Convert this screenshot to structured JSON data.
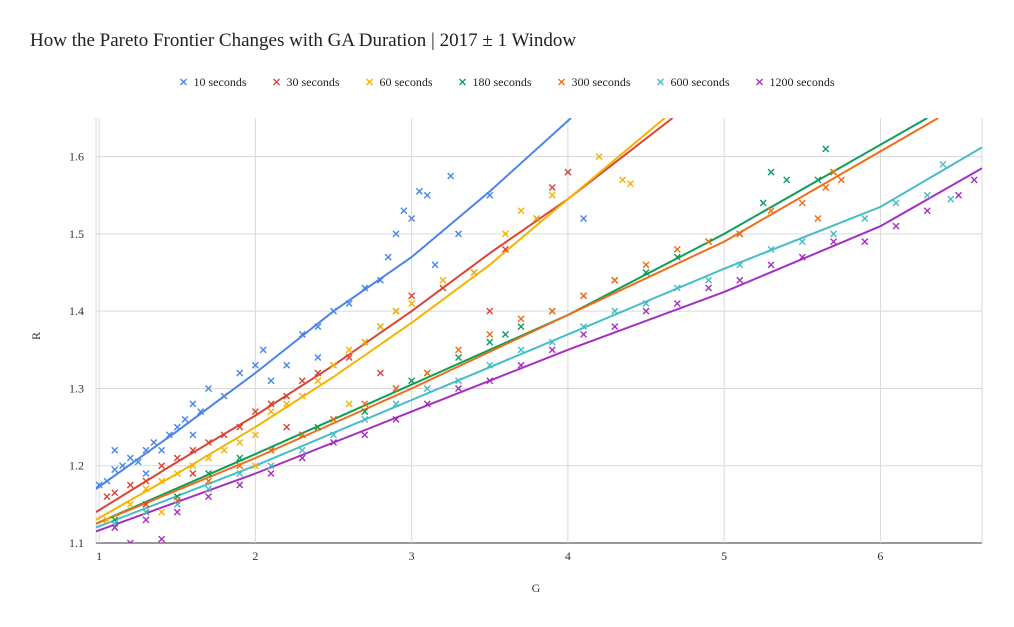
{
  "chart_data": {
    "type": "scatter",
    "title": "How the Pareto Frontier Changes with GA Duration | 2017 ± 1 Window",
    "xlabel": "G",
    "ylabel": "R",
    "xlim": [
      0.98,
      6.65
    ],
    "ylim": [
      1.1,
      1.65
    ],
    "xticks": [
      1,
      2,
      3,
      4,
      5,
      6
    ],
    "yticks": [
      1.1,
      1.2,
      1.3,
      1.4,
      1.5,
      1.6
    ],
    "grid": true,
    "legend": "top-center",
    "marker": "x",
    "series": [
      {
        "name": "10 seconds",
        "color": "#4a86e8",
        "points": [
          [
            1.0,
            1.175
          ],
          [
            1.05,
            1.18
          ],
          [
            1.1,
            1.195
          ],
          [
            1.15,
            1.2
          ],
          [
            1.2,
            1.21
          ],
          [
            1.25,
            1.205
          ],
          [
            1.3,
            1.22
          ],
          [
            1.35,
            1.23
          ],
          [
            1.4,
            1.22
          ],
          [
            1.45,
            1.24
          ],
          [
            1.5,
            1.25
          ],
          [
            1.55,
            1.26
          ],
          [
            1.6,
            1.28
          ],
          [
            1.65,
            1.27
          ],
          [
            1.7,
            1.3
          ],
          [
            1.8,
            1.29
          ],
          [
            1.9,
            1.32
          ],
          [
            2.0,
            1.33
          ],
          [
            2.05,
            1.35
          ],
          [
            2.1,
            1.31
          ],
          [
            2.2,
            1.33
          ],
          [
            2.3,
            1.37
          ],
          [
            2.4,
            1.38
          ],
          [
            2.5,
            1.4
          ],
          [
            2.6,
            1.41
          ],
          [
            2.7,
            1.43
          ],
          [
            2.8,
            1.44
          ],
          [
            2.85,
            1.47
          ],
          [
            2.9,
            1.5
          ],
          [
            2.95,
            1.53
          ],
          [
            3.0,
            1.52
          ],
          [
            3.05,
            1.555
          ],
          [
            3.1,
            1.55
          ],
          [
            3.15,
            1.46
          ],
          [
            3.25,
            1.575
          ],
          [
            3.3,
            1.5
          ],
          [
            3.5,
            1.55
          ],
          [
            4.1,
            1.52
          ],
          [
            1.1,
            1.22
          ],
          [
            1.3,
            1.19
          ],
          [
            1.6,
            1.24
          ],
          [
            2.4,
            1.34
          ]
        ],
        "fit": [
          [
            0.98,
            1.17
          ],
          [
            1.5,
            1.245
          ],
          [
            2.0,
            1.32
          ],
          [
            2.5,
            1.4
          ],
          [
            3.0,
            1.47
          ],
          [
            3.5,
            1.555
          ],
          [
            4.02,
            1.65
          ]
        ]
      },
      {
        "name": "30 seconds",
        "color": "#db4437",
        "points": [
          [
            1.05,
            1.16
          ],
          [
            1.1,
            1.165
          ],
          [
            1.2,
            1.175
          ],
          [
            1.3,
            1.18
          ],
          [
            1.4,
            1.2
          ],
          [
            1.5,
            1.21
          ],
          [
            1.6,
            1.22
          ],
          [
            1.7,
            1.23
          ],
          [
            1.8,
            1.24
          ],
          [
            1.9,
            1.25
          ],
          [
            2.0,
            1.27
          ],
          [
            2.1,
            1.28
          ],
          [
            2.2,
            1.29
          ],
          [
            2.3,
            1.31
          ],
          [
            2.4,
            1.32
          ],
          [
            2.5,
            1.33
          ],
          [
            2.6,
            1.34
          ],
          [
            2.7,
            1.36
          ],
          [
            2.8,
            1.38
          ],
          [
            2.9,
            1.4
          ],
          [
            3.0,
            1.42
          ],
          [
            3.2,
            1.43
          ],
          [
            3.4,
            1.45
          ],
          [
            3.6,
            1.48
          ],
          [
            3.8,
            1.52
          ],
          [
            3.9,
            1.56
          ],
          [
            4.0,
            1.58
          ],
          [
            1.3,
            1.15
          ],
          [
            1.6,
            1.19
          ],
          [
            2.2,
            1.25
          ],
          [
            2.8,
            1.32
          ],
          [
            3.5,
            1.4
          ]
        ],
        "fit": [
          [
            0.98,
            1.14
          ],
          [
            1.5,
            1.205
          ],
          [
            2.0,
            1.265
          ],
          [
            2.5,
            1.33
          ],
          [
            3.0,
            1.4
          ],
          [
            3.5,
            1.475
          ],
          [
            4.0,
            1.545
          ],
          [
            4.67,
            1.65
          ]
        ]
      },
      {
        "name": "60 seconds",
        "color": "#f4b400",
        "points": [
          [
            1.05,
            1.13
          ],
          [
            1.2,
            1.15
          ],
          [
            1.3,
            1.17
          ],
          [
            1.4,
            1.18
          ],
          [
            1.5,
            1.19
          ],
          [
            1.6,
            1.2
          ],
          [
            1.7,
            1.21
          ],
          [
            1.8,
            1.22
          ],
          [
            1.9,
            1.23
          ],
          [
            2.0,
            1.24
          ],
          [
            2.1,
            1.27
          ],
          [
            2.2,
            1.28
          ],
          [
            2.3,
            1.29
          ],
          [
            2.4,
            1.31
          ],
          [
            2.5,
            1.33
          ],
          [
            2.6,
            1.35
          ],
          [
            2.7,
            1.36
          ],
          [
            2.8,
            1.38
          ],
          [
            2.9,
            1.4
          ],
          [
            3.0,
            1.41
          ],
          [
            3.2,
            1.44
          ],
          [
            3.4,
            1.45
          ],
          [
            3.6,
            1.5
          ],
          [
            3.7,
            1.53
          ],
          [
            3.8,
            1.52
          ],
          [
            3.9,
            1.55
          ],
          [
            4.2,
            1.6
          ],
          [
            4.35,
            1.57
          ],
          [
            4.4,
            1.565
          ],
          [
            1.4,
            1.14
          ],
          [
            2.0,
            1.2
          ],
          [
            2.6,
            1.28
          ]
        ],
        "fit": [
          [
            0.98,
            1.13
          ],
          [
            1.5,
            1.19
          ],
          [
            2.0,
            1.25
          ],
          [
            2.5,
            1.315
          ],
          [
            3.0,
            1.385
          ],
          [
            3.5,
            1.46
          ],
          [
            4.0,
            1.545
          ],
          [
            4.62,
            1.65
          ]
        ]
      },
      {
        "name": "180 seconds",
        "color": "#0f9d58",
        "points": [
          [
            1.1,
            1.13
          ],
          [
            1.3,
            1.14
          ],
          [
            1.5,
            1.16
          ],
          [
            1.7,
            1.19
          ],
          [
            1.9,
            1.21
          ],
          [
            2.1,
            1.22
          ],
          [
            2.3,
            1.24
          ],
          [
            2.5,
            1.26
          ],
          [
            2.7,
            1.27
          ],
          [
            2.9,
            1.3
          ],
          [
            3.1,
            1.32
          ],
          [
            3.3,
            1.34
          ],
          [
            3.5,
            1.36
          ],
          [
            3.7,
            1.38
          ],
          [
            3.9,
            1.4
          ],
          [
            4.1,
            1.42
          ],
          [
            4.3,
            1.44
          ],
          [
            4.5,
            1.45
          ],
          [
            4.7,
            1.47
          ],
          [
            4.9,
            1.49
          ],
          [
            5.1,
            1.5
          ],
          [
            5.25,
            1.54
          ],
          [
            5.3,
            1.58
          ],
          [
            5.4,
            1.57
          ],
          [
            5.6,
            1.57
          ],
          [
            5.65,
            1.61
          ],
          [
            5.7,
            1.58
          ],
          [
            2.4,
            1.25
          ],
          [
            3.0,
            1.31
          ],
          [
            3.6,
            1.37
          ]
        ],
        "fit": [
          [
            0.98,
            1.125
          ],
          [
            2.0,
            1.215
          ],
          [
            3.0,
            1.305
          ],
          [
            4.0,
            1.395
          ],
          [
            5.0,
            1.5
          ],
          [
            6.3,
            1.65
          ]
        ]
      },
      {
        "name": "300 seconds",
        "color": "#f06d1a",
        "points": [
          [
            1.1,
            1.12
          ],
          [
            1.3,
            1.14
          ],
          [
            1.5,
            1.155
          ],
          [
            1.7,
            1.18
          ],
          [
            1.9,
            1.2
          ],
          [
            2.1,
            1.22
          ],
          [
            2.3,
            1.24
          ],
          [
            2.5,
            1.26
          ],
          [
            2.7,
            1.28
          ],
          [
            2.9,
            1.3
          ],
          [
            3.1,
            1.32
          ],
          [
            3.3,
            1.35
          ],
          [
            3.5,
            1.37
          ],
          [
            3.7,
            1.39
          ],
          [
            3.9,
            1.4
          ],
          [
            4.1,
            1.42
          ],
          [
            4.3,
            1.44
          ],
          [
            4.5,
            1.46
          ],
          [
            4.7,
            1.48
          ],
          [
            4.9,
            1.49
          ],
          [
            5.1,
            1.5
          ],
          [
            5.3,
            1.53
          ],
          [
            5.5,
            1.54
          ],
          [
            5.65,
            1.56
          ],
          [
            5.7,
            1.58
          ],
          [
            5.75,
            1.57
          ],
          [
            5.6,
            1.52
          ]
        ],
        "fit": [
          [
            0.98,
            1.125
          ],
          [
            2.0,
            1.21
          ],
          [
            3.0,
            1.3
          ],
          [
            4.0,
            1.395
          ],
          [
            5.0,
            1.49
          ],
          [
            6.37,
            1.65
          ]
        ]
      },
      {
        "name": "600 seconds",
        "color": "#46bdc6",
        "points": [
          [
            1.1,
            1.125
          ],
          [
            1.3,
            1.14
          ],
          [
            1.5,
            1.15
          ],
          [
            1.7,
            1.17
          ],
          [
            1.9,
            1.19
          ],
          [
            2.1,
            1.2
          ],
          [
            2.3,
            1.22
          ],
          [
            2.5,
            1.24
          ],
          [
            2.7,
            1.26
          ],
          [
            2.9,
            1.28
          ],
          [
            3.1,
            1.3
          ],
          [
            3.3,
            1.31
          ],
          [
            3.5,
            1.33
          ],
          [
            3.7,
            1.35
          ],
          [
            3.9,
            1.36
          ],
          [
            4.1,
            1.38
          ],
          [
            4.3,
            1.4
          ],
          [
            4.5,
            1.41
          ],
          [
            4.7,
            1.43
          ],
          [
            4.9,
            1.44
          ],
          [
            5.1,
            1.46
          ],
          [
            5.3,
            1.48
          ],
          [
            5.5,
            1.49
          ],
          [
            5.7,
            1.5
          ],
          [
            5.9,
            1.52
          ],
          [
            6.1,
            1.54
          ],
          [
            6.3,
            1.55
          ],
          [
            6.4,
            1.59
          ],
          [
            6.45,
            1.545
          ]
        ],
        "fit": [
          [
            0.98,
            1.12
          ],
          [
            2.0,
            1.2
          ],
          [
            3.0,
            1.285
          ],
          [
            4.0,
            1.37
          ],
          [
            5.0,
            1.455
          ],
          [
            6.0,
            1.535
          ],
          [
            6.65,
            1.612
          ]
        ]
      },
      {
        "name": "1200 seconds",
        "color": "#a52fc4",
        "points": [
          [
            1.1,
            1.12
          ],
          [
            1.3,
            1.13
          ],
          [
            1.5,
            1.14
          ],
          [
            1.7,
            1.16
          ],
          [
            1.9,
            1.175
          ],
          [
            2.1,
            1.19
          ],
          [
            2.3,
            1.21
          ],
          [
            2.5,
            1.23
          ],
          [
            2.7,
            1.24
          ],
          [
            2.9,
            1.26
          ],
          [
            3.1,
            1.28
          ],
          [
            3.3,
            1.3
          ],
          [
            3.5,
            1.31
          ],
          [
            3.7,
            1.33
          ],
          [
            3.9,
            1.35
          ],
          [
            4.1,
            1.37
          ],
          [
            4.3,
            1.38
          ],
          [
            4.5,
            1.4
          ],
          [
            4.7,
            1.41
          ],
          [
            4.9,
            1.43
          ],
          [
            5.1,
            1.44
          ],
          [
            5.3,
            1.46
          ],
          [
            5.5,
            1.47
          ],
          [
            5.7,
            1.49
          ],
          [
            5.9,
            1.49
          ],
          [
            6.1,
            1.51
          ],
          [
            6.3,
            1.53
          ],
          [
            6.5,
            1.55
          ],
          [
            6.6,
            1.57
          ],
          [
            1.2,
            1.1
          ],
          [
            1.4,
            1.105
          ]
        ],
        "fit": [
          [
            0.98,
            1.115
          ],
          [
            2.0,
            1.19
          ],
          [
            3.0,
            1.27
          ],
          [
            4.0,
            1.35
          ],
          [
            5.0,
            1.425
          ],
          [
            6.0,
            1.51
          ],
          [
            6.65,
            1.585
          ]
        ]
      }
    ]
  }
}
